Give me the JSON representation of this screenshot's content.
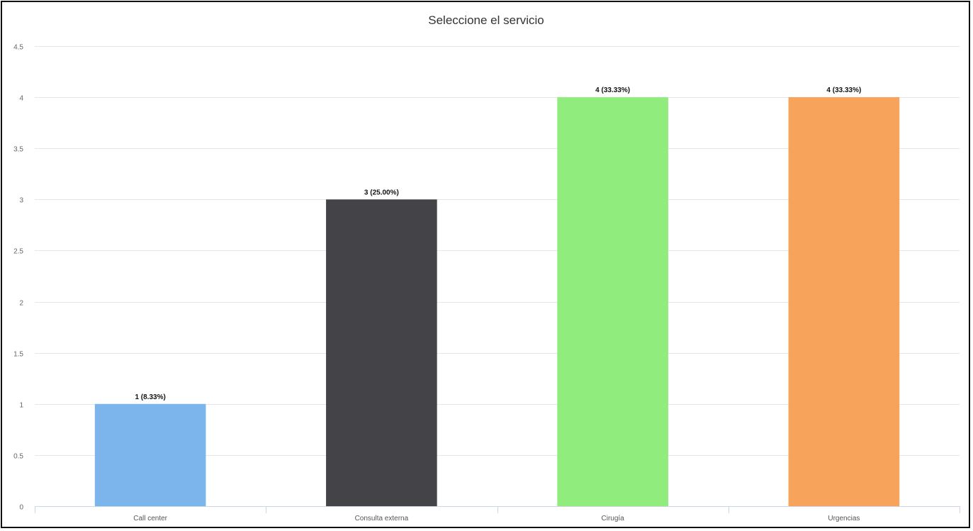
{
  "chart_data": {
    "type": "bar",
    "title": "Seleccione el servicio",
    "categories": [
      "Call center",
      "Consulta externa",
      "Cirugía",
      "Urgencias"
    ],
    "values": [
      1,
      3,
      4,
      4
    ],
    "data_labels": [
      "1 (8.33%)",
      "3 (25.00%)",
      "4 (33.33%)",
      "4 (33.33%)"
    ],
    "colors": [
      "#7cb5ec",
      "#434348",
      "#90ed7d",
      "#f7a35c"
    ],
    "ylim": [
      0,
      4.5
    ],
    "yticks": [
      "0",
      "0.5",
      "1",
      "1.5",
      "2",
      "2.5",
      "3",
      "3.5",
      "4",
      "4.5"
    ],
    "grid": true,
    "legend": "none"
  }
}
